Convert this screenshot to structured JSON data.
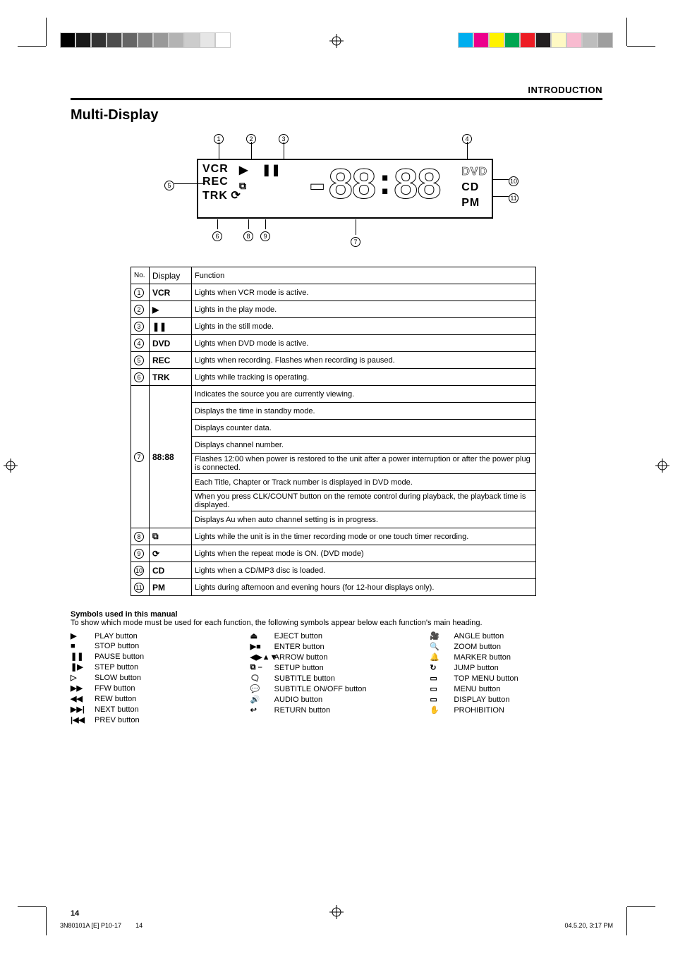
{
  "page": {
    "header_category": "INTRODUCTION",
    "title": "Multi-Display",
    "page_number": "14"
  },
  "footer": {
    "file": "3N80101A  [E] P10-17",
    "page": "14",
    "date": "04.5.20, 3:17 PM"
  },
  "diagram": {
    "lcd": {
      "left_col1_r1": "VCR",
      "left_col1_r2": "REC",
      "left_col1_r3": "TRK",
      "digits": "-88:88",
      "right_r1": "DVD",
      "right_r2": "CD",
      "right_r3": "PM"
    },
    "callouts": [
      "1",
      "2",
      "3",
      "4",
      "5",
      "6",
      "7",
      "8",
      "9",
      "10",
      "11"
    ]
  },
  "indicator_table": {
    "header": {
      "no": "No.",
      "display": "Display",
      "function": "Function"
    },
    "rows": [
      {
        "no": "1",
        "sym": "VCR",
        "func": "Lights when VCR mode is active."
      },
      {
        "no": "2",
        "sym": "▶",
        "func": "Lights in the play mode."
      },
      {
        "no": "3",
        "sym": "❚❚",
        "func": "Lights in the still mode."
      },
      {
        "no": "4",
        "sym": "DVD",
        "func": "Lights when DVD mode is active."
      },
      {
        "no": "5",
        "sym": "REC",
        "func": "Lights when recording. Flashes when recording is paused."
      },
      {
        "no": "6",
        "sym": "TRK",
        "func": "Lights while tracking is operating."
      }
    ],
    "seg_rows": [
      "Indicates the source you are currently viewing.",
      "Displays the time in standby mode.",
      "Displays counter data.",
      "Displays channel number.",
      "Flashes 12:00 when power is restored to the unit after a power interruption or after the power plug is connected.",
      "Each Title, Chapter or Track number is displayed in DVD mode.",
      "When you press CLK/COUNT button on the remote control during playback, the playback time is displayed.",
      "Displays Au when auto channel setting is in progress."
    ],
    "seg_no": "7",
    "seg_sym": "88:88",
    "tail_rows": [
      {
        "no": "8",
        "sym": "⧉",
        "func": "Lights while the unit is in the timer recording mode or one touch timer recording."
      },
      {
        "no": "9",
        "sym": "⟳",
        "func": "Lights when the repeat mode is ON. (DVD mode)"
      },
      {
        "no": "10",
        "sym": "CD",
        "func": "Lights when a CD/MP3 disc is loaded."
      },
      {
        "no": "11",
        "sym": "PM",
        "func": "Lights during afternoon and evening hours (for 12-hour displays only)."
      }
    ]
  },
  "symbols": {
    "title": "Symbols used in this manual",
    "note": "To show which mode must be used for each function, the following symbols appear below each function's main heading.",
    "col1": [
      {
        "sym": "▶",
        "label": "PLAY button"
      },
      {
        "sym": "■",
        "label": "STOP button"
      },
      {
        "sym": "❚❚",
        "label": "PAUSE button"
      },
      {
        "sym": "❚▶",
        "label": "STEP button"
      },
      {
        "sym": "▷",
        "label": "SLOW button"
      },
      {
        "sym": "▶▶",
        "label": "FFW button"
      },
      {
        "sym": "◀◀",
        "label": "REW button"
      },
      {
        "sym": "▶▶|",
        "label": "NEXT button"
      },
      {
        "sym": "|◀◀",
        "label": "PREV button"
      }
    ],
    "col2": [
      {
        "sym": "⏏",
        "label": "EJECT button"
      },
      {
        "sym": "▶■",
        "label": "ENTER button"
      },
      {
        "sym": "◀▶▲▼",
        "label": "ARROW button"
      },
      {
        "sym": "⧉ –",
        "label": "SETUP button"
      },
      {
        "sym": "🗨",
        "label": "SUBTITLE button"
      },
      {
        "sym": "💬",
        "label": "SUBTITLE ON/OFF button"
      },
      {
        "sym": "🔊",
        "label": "AUDIO button"
      },
      {
        "sym": "↩",
        "label": "RETURN button"
      }
    ],
    "col3": [
      {
        "sym": "🎥",
        "label": "ANGLE button"
      },
      {
        "sym": "🔍",
        "label": "ZOOM button"
      },
      {
        "sym": "🔔",
        "label": "MARKER button"
      },
      {
        "sym": "↻",
        "label": "JUMP button"
      },
      {
        "sym": "▭",
        "label": "TOP MENU button"
      },
      {
        "sym": "▭",
        "label": "MENU button"
      },
      {
        "sym": "▭",
        "label": "DISPLAY button"
      },
      {
        "sym": "✋",
        "label": "PROHIBITION"
      }
    ]
  },
  "colors": {
    "grayscale": [
      "#000000",
      "#1a1a1a",
      "#333333",
      "#4d4d4d",
      "#666666",
      "#808080",
      "#999999",
      "#b3b3b3",
      "#cccccc",
      "#e6e6e6",
      "#ffffff"
    ],
    "process": [
      "#00aeef",
      "#ec008c",
      "#fff200",
      "#00a651",
      "#ed1c24",
      "#231f20",
      "#fff9c4",
      "#f8bbd0",
      "#bdbdbd",
      "#9e9e9e"
    ]
  }
}
